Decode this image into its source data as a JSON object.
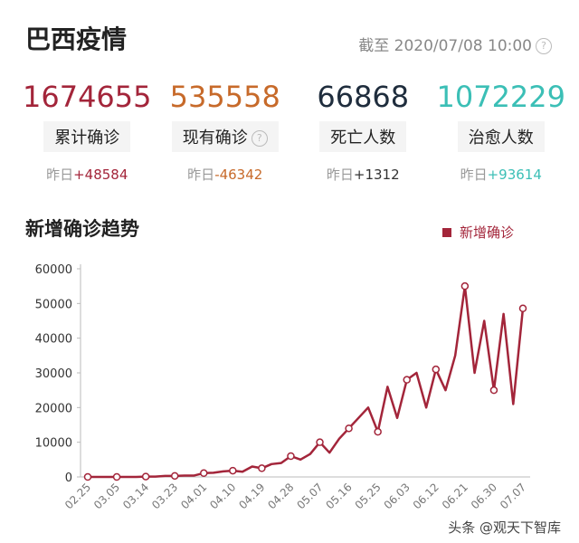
{
  "header": {
    "title": "巴西疫情",
    "updated": "截至 2020/07/08 10:00"
  },
  "stats": [
    {
      "value": "1674655",
      "label": "累计确诊",
      "prefix": "昨日",
      "change": "+48584"
    },
    {
      "value": "535558",
      "label": "现有确诊",
      "prefix": "昨日",
      "change": "-46342"
    },
    {
      "value": "66868",
      "label": "死亡人数",
      "prefix": "昨日",
      "change": "+1312"
    },
    {
      "value": "1072229",
      "label": "治愈人数",
      "prefix": "昨日",
      "change": "+93614"
    }
  ],
  "chart_data": {
    "type": "line",
    "title": "新增确诊趋势",
    "categories": [
      "02.25",
      null,
      null,
      "03.05",
      null,
      null,
      "03.14",
      null,
      null,
      "03.23",
      null,
      null,
      "04.01",
      null,
      null,
      "04.10",
      null,
      null,
      "04.19",
      null,
      null,
      "04.28",
      null,
      null,
      "05.07",
      null,
      null,
      "05.16",
      null,
      null,
      "05.25",
      null,
      null,
      "06.03",
      null,
      null,
      "06.12",
      null,
      null,
      "06.21",
      null,
      null,
      "06.30",
      null,
      null,
      "07.07"
    ],
    "series": [
      {
        "name": "新增确诊",
        "color": "#a3253a",
        "values": [
          0,
          0,
          0,
          0,
          0,
          0,
          100,
          100,
          300,
          300,
          400,
          400,
          1100,
          1200,
          1600,
          1800,
          1500,
          3000,
          2500,
          3700,
          4000,
          6000,
          5000,
          6600,
          10000,
          7000,
          11000,
          14000,
          17000,
          20000,
          13000,
          26000,
          17000,
          28000,
          30000,
          20000,
          31000,
          25000,
          35000,
          55000,
          30000,
          45000,
          25000,
          47000,
          21000,
          48584
        ]
      }
    ],
    "ylim": [
      0,
      60000
    ],
    "yticks": [
      0,
      10000,
      20000,
      30000,
      40000,
      50000,
      60000
    ],
    "grid": false,
    "legend": "top-right"
  },
  "watermark": "头条 @观天下智库"
}
